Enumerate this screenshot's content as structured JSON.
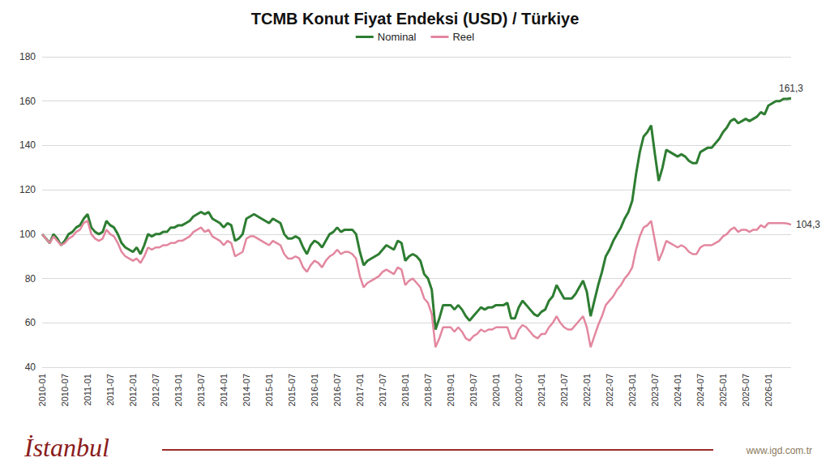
{
  "chart_data": {
    "type": "line",
    "title": "TCMB Konut Fiyat Endeksi (USD) / Türkiye",
    "annotations": [
      {
        "text": "İstanbul"
      },
      {
        "text": "www.igd.com.tr"
      }
    ],
    "categories": [
      "2010-01",
      null,
      null,
      null,
      null,
      null,
      "2010-07",
      null,
      null,
      null,
      null,
      null,
      "2011-01",
      null,
      null,
      null,
      null,
      null,
      "2011-07",
      null,
      null,
      null,
      null,
      null,
      "2012-01",
      null,
      null,
      null,
      null,
      null,
      "2012-07",
      null,
      null,
      null,
      null,
      null,
      "2013-01",
      null,
      null,
      null,
      null,
      null,
      "2013-07",
      null,
      null,
      null,
      null,
      null,
      "2014-01",
      null,
      null,
      null,
      null,
      null,
      "2014-07",
      null,
      null,
      null,
      null,
      null,
      "2015-01",
      null,
      null,
      null,
      null,
      null,
      "2015-07",
      null,
      null,
      null,
      null,
      null,
      "2016-01",
      null,
      null,
      null,
      null,
      null,
      "2016-07",
      null,
      null,
      null,
      null,
      null,
      "2017-01",
      null,
      null,
      null,
      null,
      null,
      "2017-07",
      null,
      null,
      null,
      null,
      null,
      "2018-01",
      null,
      null,
      null,
      null,
      null,
      "2018-07",
      null,
      null,
      null,
      null,
      null,
      "2019-01",
      null,
      null,
      null,
      null,
      null,
      "2019-07",
      null,
      null,
      null,
      null,
      null,
      "2020-01",
      null,
      null,
      null,
      null,
      null,
      "2020-07",
      null,
      null,
      null,
      null,
      null,
      "2021-01",
      null,
      null,
      null,
      null,
      null,
      "2021-07",
      null,
      null,
      null,
      null,
      null,
      "2022-01",
      null,
      null,
      null,
      null,
      null,
      "2022-07",
      null,
      null,
      null,
      null,
      null,
      "2023-01",
      null,
      null,
      null,
      null,
      null,
      "2023-07",
      null,
      null,
      null,
      null,
      null,
      "2024-01",
      null,
      null,
      null,
      null,
      null,
      "2024-07",
      null,
      null,
      null,
      null,
      null,
      "2025-01",
      null,
      null,
      null,
      null,
      null,
      "2025-07",
      null,
      null,
      null,
      null,
      null,
      "2026-01",
      null,
      null,
      null,
      null,
      null,
      null
    ],
    "series": [
      {
        "name": "Nominal",
        "color": "#2e7d32",
        "values": [
          100,
          98,
          96,
          100,
          98,
          95,
          97,
          100,
          101,
          103,
          104,
          107,
          109,
          103,
          101,
          100,
          101,
          106,
          104,
          103,
          100,
          96,
          94,
          93,
          92,
          94,
          91,
          95,
          100,
          99,
          100,
          100,
          101,
          101,
          103,
          103,
          104,
          104,
          105,
          106,
          108,
          109,
          110,
          109,
          110,
          107,
          106,
          105,
          103,
          105,
          104,
          97,
          98,
          100,
          107,
          108,
          109,
          108,
          107,
          106,
          105,
          107,
          106,
          105,
          100,
          98,
          98,
          99,
          98,
          94,
          91,
          95,
          97,
          96,
          94,
          97,
          100,
          101,
          103,
          101,
          102,
          102,
          102,
          100,
          92,
          86,
          88,
          89,
          90,
          91,
          93,
          95,
          94,
          93,
          97,
          96,
          88,
          90,
          91,
          90,
          88,
          82,
          80,
          75,
          57,
          62,
          68,
          68,
          68,
          66,
          68,
          66,
          63,
          61,
          63,
          65,
          67,
          66,
          67,
          67,
          68,
          68,
          68,
          69,
          62,
          62,
          67,
          70,
          68,
          66,
          64,
          63,
          65,
          66,
          70,
          72,
          77,
          74,
          71,
          71,
          71,
          73,
          76,
          79,
          74,
          63,
          70,
          77,
          83,
          90,
          93,
          97,
          100,
          103,
          107,
          110,
          115,
          127,
          137,
          144,
          146,
          149,
          136,
          124,
          130,
          138,
          137,
          136,
          135,
          136,
          135,
          133,
          132,
          132,
          137,
          138,
          139,
          139,
          141,
          143,
          146,
          148,
          151,
          152,
          150,
          151,
          152,
          151,
          152,
          153,
          155,
          154,
          158,
          159,
          160,
          160,
          161,
          161,
          161.3
        ],
        "value_labels": [
          null,
          null,
          null,
          null,
          null,
          null,
          null,
          null,
          null,
          null,
          null,
          null,
          null,
          null,
          null,
          null,
          null,
          null,
          null,
          null,
          null,
          null,
          null,
          null,
          null,
          null,
          null,
          null,
          null,
          null,
          null,
          null,
          null,
          null,
          null,
          null,
          null,
          null,
          null,
          null,
          null,
          null,
          null,
          null,
          null,
          null,
          null,
          null,
          null,
          null,
          null,
          null,
          null,
          null,
          null,
          null,
          null,
          null,
          null,
          null,
          null,
          null,
          null,
          null,
          null,
          null,
          null,
          null,
          null,
          null,
          null,
          null,
          null,
          null,
          null,
          null,
          null,
          null,
          null,
          null,
          null,
          null,
          null,
          null,
          null,
          null,
          null,
          null,
          null,
          null,
          null,
          null,
          null,
          null,
          null,
          null,
          null,
          null,
          null,
          null,
          null,
          null,
          null,
          null,
          null,
          null,
          null,
          null,
          null,
          null,
          null,
          null,
          null,
          null,
          null,
          null,
          null,
          null,
          null,
          null,
          null,
          null,
          null,
          null,
          null,
          null,
          null,
          null,
          null,
          null,
          null,
          null,
          null,
          null,
          null,
          null,
          null,
          null,
          null,
          null,
          null,
          null,
          null,
          null,
          null,
          null,
          null,
          null,
          null,
          null,
          null,
          null,
          null,
          null,
          null,
          null,
          null,
          null,
          null,
          null,
          null,
          null,
          null,
          null,
          null,
          null,
          null,
          null,
          null,
          null,
          null,
          null,
          null,
          null,
          null,
          null,
          null,
          null,
          null,
          null,
          null,
          null,
          null,
          null,
          null,
          null,
          null,
          null,
          null,
          null,
          null,
          null,
          null,
          null,
          null,
          null,
          null,
          null,
          "161,3"
        ]
      },
      {
        "name": "Reel",
        "color": "#e2879f",
        "values": [
          100,
          98,
          96,
          99,
          97,
          95,
          96,
          98,
          99,
          101,
          102,
          105,
          106,
          100,
          98,
          97,
          98,
          102,
          100,
          99,
          96,
          92,
          90,
          89,
          88,
          89,
          87,
          90,
          94,
          93,
          94,
          94,
          95,
          95,
          96,
          96,
          97,
          97,
          98,
          99,
          101,
          102,
          103,
          101,
          102,
          99,
          98,
          97,
          95,
          97,
          96,
          90,
          91,
          92,
          98,
          99,
          99,
          98,
          97,
          96,
          95,
          97,
          96,
          95,
          91,
          89,
          89,
          90,
          89,
          85,
          83,
          86,
          88,
          87,
          85,
          88,
          90,
          91,
          93,
          91,
          92,
          92,
          91,
          89,
          81,
          76,
          78,
          79,
          80,
          81,
          83,
          84,
          83,
          82,
          85,
          84,
          77,
          79,
          80,
          78,
          76,
          71,
          69,
          64,
          49,
          53,
          58,
          58,
          58,
          56,
          58,
          56,
          53,
          52,
          54,
          55,
          57,
          56,
          57,
          57,
          58,
          58,
          58,
          58,
          53,
          53,
          57,
          59,
          58,
          56,
          54,
          53,
          55,
          55,
          58,
          60,
          63,
          60,
          58,
          57,
          57,
          59,
          61,
          63,
          58,
          49,
          54,
          59,
          63,
          68,
          70,
          72,
          75,
          77,
          80,
          82,
          85,
          93,
          99,
          103,
          104,
          106,
          97,
          88,
          92,
          97,
          96,
          95,
          94,
          95,
          94,
          92,
          91,
          91,
          94,
          95,
          95,
          95,
          96,
          97,
          99,
          100,
          102,
          103,
          101,
          102,
          102,
          101,
          102,
          102,
          104,
          103,
          105,
          105,
          105,
          105,
          105,
          104.8,
          104.3
        ],
        "value_labels": [
          null,
          null,
          null,
          null,
          null,
          null,
          null,
          null,
          null,
          null,
          null,
          null,
          null,
          null,
          null,
          null,
          null,
          null,
          null,
          null,
          null,
          null,
          null,
          null,
          null,
          null,
          null,
          null,
          null,
          null,
          null,
          null,
          null,
          null,
          null,
          null,
          null,
          null,
          null,
          null,
          null,
          null,
          null,
          null,
          null,
          null,
          null,
          null,
          null,
          null,
          null,
          null,
          null,
          null,
          null,
          null,
          null,
          null,
          null,
          null,
          null,
          null,
          null,
          null,
          null,
          null,
          null,
          null,
          null,
          null,
          null,
          null,
          null,
          null,
          null,
          null,
          null,
          null,
          null,
          null,
          null,
          null,
          null,
          null,
          null,
          null,
          null,
          null,
          null,
          null,
          null,
          null,
          null,
          null,
          null,
          null,
          null,
          null,
          null,
          null,
          null,
          null,
          null,
          null,
          null,
          null,
          null,
          null,
          null,
          null,
          null,
          null,
          null,
          null,
          null,
          null,
          null,
          null,
          null,
          null,
          null,
          null,
          null,
          null,
          null,
          null,
          null,
          null,
          null,
          null,
          null,
          null,
          null,
          null,
          null,
          null,
          null,
          null,
          null,
          null,
          null,
          null,
          null,
          null,
          null,
          null,
          null,
          null,
          null,
          null,
          null,
          null,
          null,
          null,
          null,
          null,
          null,
          null,
          null,
          null,
          null,
          null,
          null,
          null,
          null,
          null,
          null,
          null,
          null,
          null,
          null,
          null,
          null,
          null,
          null,
          null,
          null,
          null,
          null,
          null,
          null,
          null,
          null,
          null,
          null,
          null,
          null,
          null,
          null,
          null,
          null,
          null,
          null,
          null,
          null,
          null,
          null,
          null,
          "104,3"
        ]
      }
    ],
    "ylim": [
      40,
      180
    ],
    "yticks": [
      40,
      60,
      80,
      100,
      120,
      140,
      160,
      180
    ],
    "grid": true,
    "legend": "top",
    "data_labels": true
  }
}
